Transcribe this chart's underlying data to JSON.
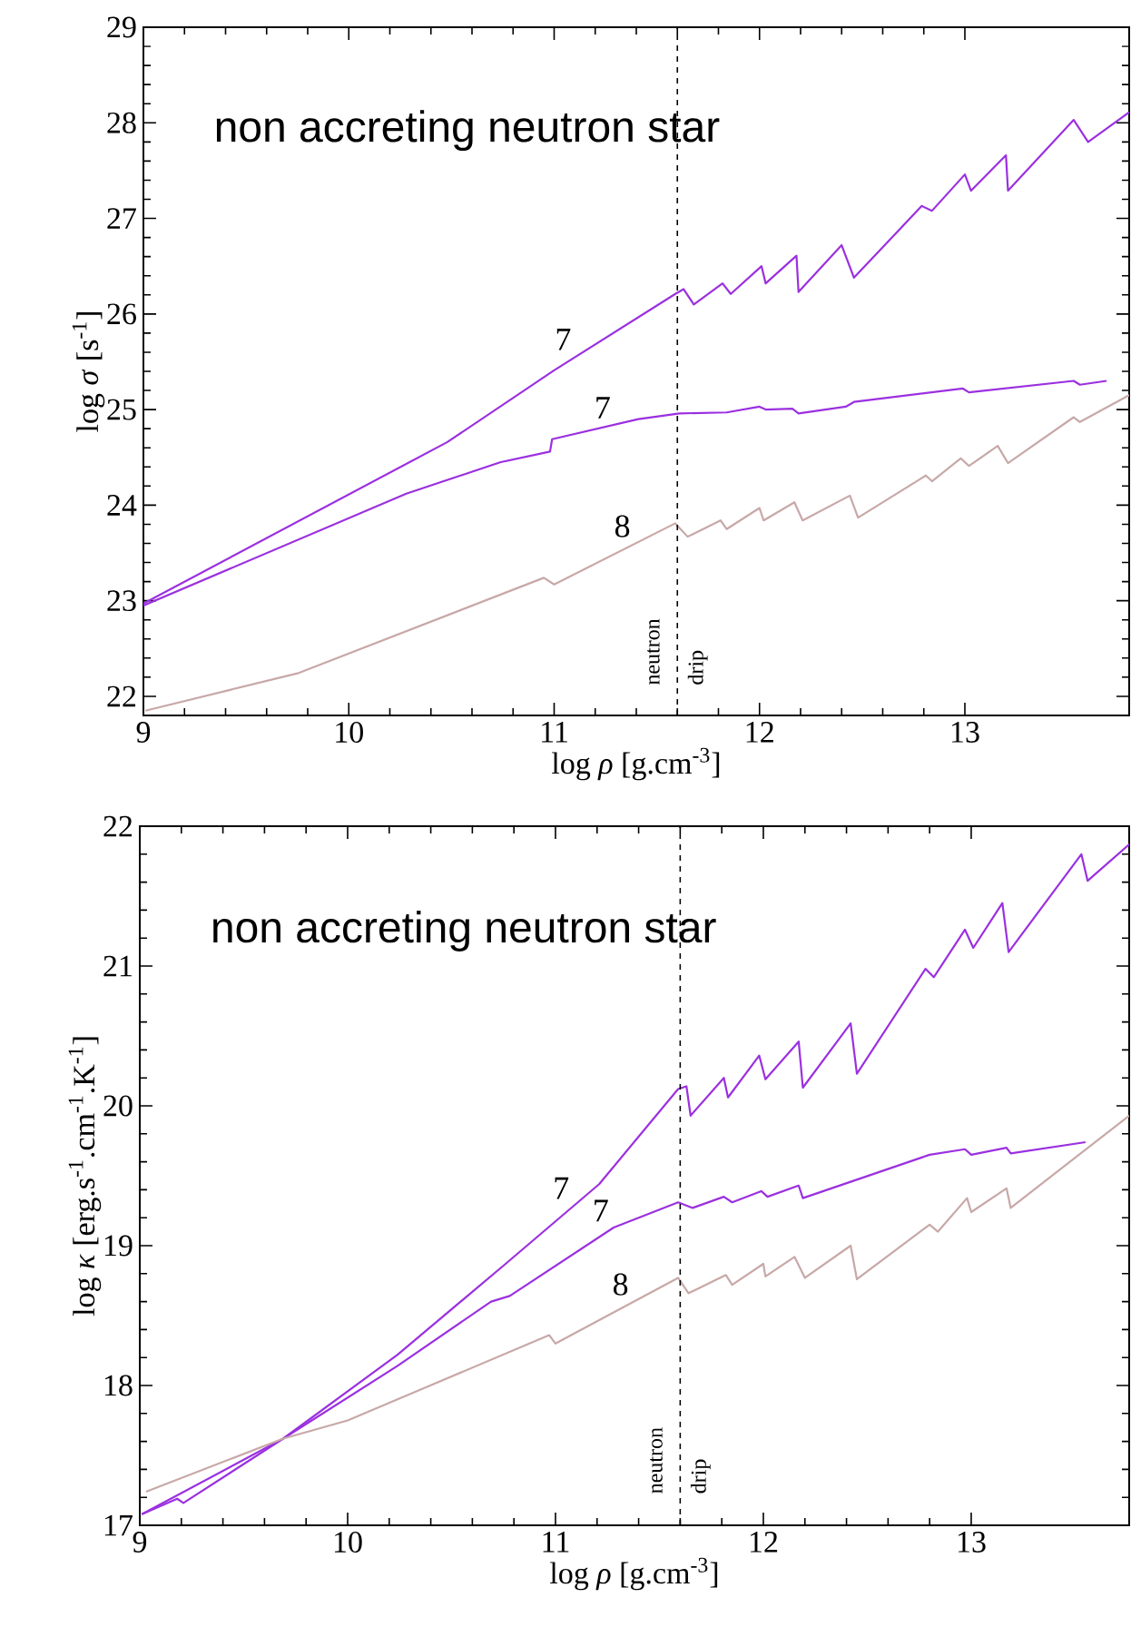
{
  "chart_data": [
    {
      "type": "line",
      "title": "non accreting neutron star",
      "xlabel": "log *ρ* [g.cm$^{-3}$]",
      "ylabel": "log *σ* [s$^{-1}$]",
      "xlim": [
        9,
        13.8
      ],
      "ylim": [
        21.8,
        29
      ],
      "xticks": [
        9,
        10,
        11,
        12,
        13
      ],
      "yticks": [
        22,
        23,
        24,
        25,
        26,
        27,
        28,
        29
      ],
      "grid": false,
      "marker": "none",
      "line_style": "solid",
      "ref_lines": [
        {
          "axis": "x",
          "value": 11.6,
          "label": "neutron drip",
          "line_style": "dashed",
          "color": "#000000"
        }
      ],
      "series": [
        {
          "name": "7",
          "color": "#9b30e0",
          "x": [
            9,
            10.48,
            11,
            11.59,
            11.63,
            11.68,
            11.82,
            11.86,
            12.01,
            12.03,
            12.18,
            12.19,
            12.4,
            12.46,
            12.79,
            12.84,
            13,
            13.03,
            13.2,
            13.21,
            13.53,
            13.6,
            13.8
          ],
          "values": [
            22.97,
            24.66,
            25.41,
            26.21,
            26.26,
            26.1,
            26.32,
            26.21,
            26.5,
            26.32,
            26.61,
            26.23,
            26.72,
            26.38,
            27.13,
            27.08,
            27.46,
            27.29,
            27.66,
            27.29,
            28.03,
            27.8,
            28.11
          ]
        },
        {
          "name": "7",
          "color": "#9b30e0",
          "x": [
            9,
            10.28,
            10.74,
            10.98,
            10.99,
            11.41,
            11.61,
            11.84,
            12,
            12.03,
            12.16,
            12.19,
            12.42,
            12.46,
            12.99,
            13.02,
            13.53,
            13.56,
            13.69
          ],
          "values": [
            22.95,
            24.12,
            24.45,
            24.56,
            24.69,
            24.9,
            24.96,
            24.97,
            25.03,
            25,
            25.01,
            24.96,
            25.03,
            25.08,
            25.22,
            25.18,
            25.3,
            25.26,
            25.3
          ]
        },
        {
          "name": "8",
          "color": "#c8a8a8",
          "x": [
            9.01,
            9.75,
            10.95,
            11,
            11.59,
            11.65,
            11.81,
            11.84,
            12,
            12.02,
            12.17,
            12.21,
            12.44,
            12.48,
            12.81,
            12.84,
            12.98,
            13.02,
            13.16,
            13.21,
            13.53,
            13.56,
            13.8
          ],
          "values": [
            21.85,
            22.24,
            23.24,
            23.17,
            23.81,
            23.67,
            23.84,
            23.75,
            23.97,
            23.84,
            24.03,
            23.84,
            24.1,
            23.87,
            24.31,
            24.25,
            24.49,
            24.41,
            24.62,
            24.44,
            24.92,
            24.87,
            25.15
          ]
        }
      ]
    },
    {
      "type": "line",
      "title": "non accreting neutron star",
      "xlabel": "log *ρ* [g.cm$^{-3}$]",
      "ylabel": "log *κ* [erg.s$^{-1}$.cm$^{-1}$.K$^{-1}$]",
      "xlim": [
        9,
        13.76
      ],
      "ylim": [
        17,
        22
      ],
      "xticks": [
        9,
        10,
        11,
        12,
        13
      ],
      "yticks": [
        17,
        18,
        19,
        20,
        21,
        22
      ],
      "grid": false,
      "marker": "none",
      "line_style": "solid",
      "ref_lines": [
        {
          "axis": "x",
          "value": 11.6,
          "label": "neutron drip",
          "line_style": "dashed",
          "color": "#000000"
        }
      ],
      "series": [
        {
          "name": "7",
          "color": "#9b30e0",
          "x": [
            9.01,
            9.18,
            9.21,
            9.69,
            10.24,
            10.76,
            11.21,
            11.59,
            11.63,
            11.65,
            11.81,
            11.83,
            11.98,
            12.01,
            12.17,
            12.19,
            12.42,
            12.45,
            12.78,
            12.82,
            12.97,
            13.01,
            13.15,
            13.18,
            13.53,
            13.56,
            13.76
          ],
          "values": [
            17.08,
            17.19,
            17.16,
            17.62,
            18.22,
            18.87,
            19.44,
            20.12,
            20.14,
            19.93,
            20.2,
            20.06,
            20.36,
            20.19,
            20.46,
            20.13,
            20.59,
            20.23,
            20.98,
            20.92,
            21.26,
            21.13,
            21.45,
            21.1,
            21.8,
            21.61,
            21.87
          ]
        },
        {
          "name": "7",
          "color": "#9b30e0",
          "x": [
            9.01,
            9.69,
            10.24,
            10.69,
            10.78,
            11.28,
            11.59,
            11.66,
            11.81,
            11.85,
            11.99,
            12.02,
            12.17,
            12.19,
            12.8,
            12.97,
            13,
            13.17,
            13.19,
            13.55
          ],
          "values": [
            17.08,
            17.62,
            18.14,
            18.6,
            18.64,
            19.13,
            19.31,
            19.27,
            19.35,
            19.31,
            19.39,
            19.35,
            19.43,
            19.34,
            19.65,
            19.69,
            19.65,
            19.7,
            19.66,
            19.74
          ]
        },
        {
          "name": "8",
          "color": "#c8a8a8",
          "x": [
            9.03,
            9.69,
            10,
            10.97,
            11,
            11.59,
            11.64,
            11.82,
            11.85,
            12,
            12.01,
            12.15,
            12.2,
            12.42,
            12.45,
            12.8,
            12.84,
            12.98,
            13,
            13.17,
            13.19,
            13.76
          ],
          "values": [
            17.24,
            17.62,
            17.75,
            18.36,
            18.3,
            18.77,
            18.66,
            18.79,
            18.72,
            18.87,
            18.78,
            18.92,
            18.77,
            19,
            18.76,
            19.15,
            19.1,
            19.34,
            19.24,
            19.41,
            19.27,
            19.93
          ]
        }
      ]
    }
  ]
}
